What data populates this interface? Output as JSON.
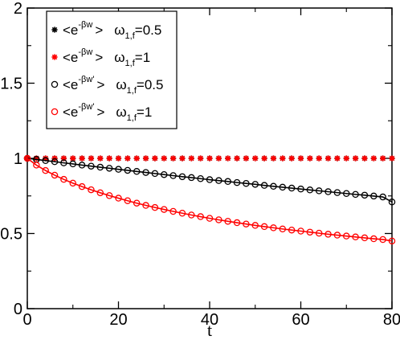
{
  "chart_data": {
    "type": "line",
    "xlabel": "t",
    "ylabel": "",
    "xlim": [
      0,
      80
    ],
    "ylim": [
      0,
      2
    ],
    "x_ticks": [
      "0",
      "20",
      "40",
      "60",
      "80"
    ],
    "y_ticks": [
      "0",
      "0.5",
      "1",
      "1.5",
      "2"
    ],
    "legend_position": "top-left",
    "grid": false,
    "legend": [
      {
        "base": "<e",
        "sup": "-βw",
        "tail": ">",
        "param": "ω",
        "sub": "1,f",
        "value": "=0.5"
      },
      {
        "base": "<e",
        "sup": "-βw",
        "tail": ">",
        "param": "ω",
        "sub": "1,f",
        "value": "=1"
      },
      {
        "base": "<e",
        "sup": "-βw'",
        "tail": ">",
        "param": "ω",
        "sub": "1,f",
        "value": "=0.5"
      },
      {
        "base": "<e",
        "sup": "-βw'",
        "tail": ">",
        "param": "ω",
        "sub": "1,f",
        "value": "=1"
      }
    ],
    "series": [
      {
        "marker": "star",
        "color": "#000000",
        "line": false,
        "x": [
          0,
          2,
          4,
          6,
          8,
          10,
          12,
          14,
          16,
          18,
          20,
          22,
          24,
          26,
          28,
          30,
          32,
          34,
          36,
          38,
          40,
          42,
          44,
          46,
          48,
          50,
          52,
          54,
          56,
          58,
          60,
          62,
          64,
          66,
          68,
          70,
          72,
          74,
          76,
          78,
          80
        ],
        "y": [
          1,
          1,
          1,
          1,
          1,
          1,
          1,
          1,
          1,
          1,
          1,
          1,
          1,
          1,
          1,
          1,
          1,
          1,
          1,
          1,
          1,
          1,
          1,
          1,
          1,
          1,
          1,
          1,
          1,
          1,
          1,
          1,
          1,
          1,
          1,
          1,
          1,
          1,
          1,
          1,
          1
        ]
      },
      {
        "marker": "star",
        "color": "#ff0000",
        "line": false,
        "x": [
          0,
          2,
          4,
          6,
          8,
          10,
          12,
          14,
          16,
          18,
          20,
          22,
          24,
          26,
          28,
          30,
          32,
          34,
          36,
          38,
          40,
          42,
          44,
          46,
          48,
          50,
          52,
          54,
          56,
          58,
          60,
          62,
          64,
          66,
          68,
          70,
          72,
          74,
          76,
          78,
          80
        ],
        "y": [
          1,
          1,
          1,
          1,
          1,
          1,
          1,
          1,
          1,
          1,
          1,
          1,
          1,
          1,
          1,
          1,
          1,
          1,
          1,
          1,
          1,
          1,
          1,
          1,
          1,
          1,
          1,
          1,
          1,
          1,
          1,
          1,
          1,
          1,
          1,
          1,
          1,
          1,
          1,
          1,
          1
        ]
      },
      {
        "marker": "circle",
        "color": "#000000",
        "line": true,
        "x": [
          0,
          2,
          4,
          6,
          8,
          10,
          12,
          14,
          16,
          18,
          20,
          22,
          24,
          26,
          28,
          30,
          32,
          34,
          36,
          38,
          40,
          42,
          44,
          46,
          48,
          50,
          52,
          54,
          56,
          58,
          60,
          62,
          64,
          66,
          68,
          70,
          72,
          74,
          76,
          78,
          80
        ],
        "y": [
          1.0,
          0.993,
          0.985,
          0.978,
          0.97,
          0.963,
          0.955,
          0.948,
          0.941,
          0.934,
          0.927,
          0.92,
          0.913,
          0.906,
          0.899,
          0.892,
          0.885,
          0.878,
          0.872,
          0.865,
          0.858,
          0.852,
          0.846,
          0.839,
          0.833,
          0.827,
          0.82,
          0.814,
          0.808,
          0.802,
          0.796,
          0.79,
          0.784,
          0.778,
          0.772,
          0.766,
          0.76,
          0.755,
          0.749,
          0.743,
          0.71
        ]
      },
      {
        "marker": "circle",
        "color": "#ff0000",
        "line": true,
        "x": [
          0,
          2,
          4,
          6,
          8,
          10,
          12,
          14,
          16,
          18,
          20,
          22,
          24,
          26,
          28,
          30,
          32,
          34,
          36,
          38,
          40,
          42,
          44,
          46,
          48,
          50,
          52,
          54,
          56,
          58,
          60,
          62,
          64,
          66,
          68,
          70,
          72,
          74,
          76,
          78,
          80
        ],
        "y": [
          1.0,
          0.955,
          0.919,
          0.888,
          0.86,
          0.835,
          0.812,
          0.791,
          0.771,
          0.752,
          0.735,
          0.718,
          0.702,
          0.687,
          0.673,
          0.66,
          0.647,
          0.635,
          0.623,
          0.612,
          0.601,
          0.591,
          0.581,
          0.572,
          0.563,
          0.554,
          0.546,
          0.538,
          0.53,
          0.523,
          0.516,
          0.509,
          0.502,
          0.495,
          0.489,
          0.483,
          0.477,
          0.471,
          0.465,
          0.46,
          0.45
        ]
      }
    ]
  }
}
